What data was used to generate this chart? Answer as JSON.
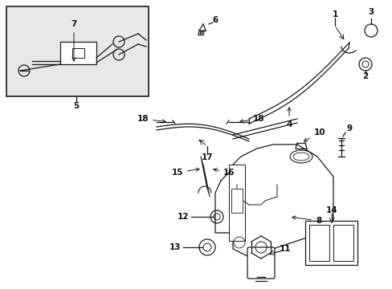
{
  "bg_color": "#ffffff",
  "line_color": "#1a1a1a",
  "label_color": "#111111",
  "fig_width": 4.89,
  "fig_height": 3.6,
  "dpi": 100
}
